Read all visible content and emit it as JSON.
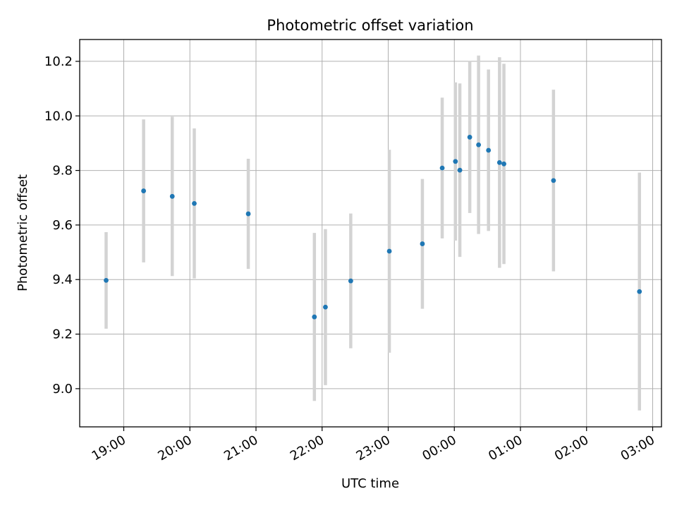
{
  "chart_data": {
    "type": "scatter",
    "title": "Photometric offset variation",
    "xlabel": "UTC time",
    "ylabel": "Photometric offset",
    "x_axis_kind": "time",
    "x_ticks": [
      "19:00",
      "20:00",
      "21:00",
      "22:00",
      "23:00",
      "00:00",
      "01:00",
      "02:00",
      "03:00"
    ],
    "y_ticks": [
      "9.0",
      "9.2",
      "9.4",
      "9.6",
      "9.8",
      "10.0",
      "10.2"
    ],
    "xlim": [
      "18:20",
      "03:08"
    ],
    "ylim": [
      8.86,
      10.28
    ],
    "grid": true,
    "point_color": "#1f77b4",
    "errorbar_color": "#d3d3d3",
    "points": [
      {
        "x": "18:44",
        "y": 9.397,
        "err": 0.177
      },
      {
        "x": "19:18",
        "y": 9.725,
        "err": 0.262
      },
      {
        "x": "19:44",
        "y": 9.705,
        "err": 0.292
      },
      {
        "x": "20:04",
        "y": 9.679,
        "err": 0.275
      },
      {
        "x": "20:53",
        "y": 9.641,
        "err": 0.202
      },
      {
        "x": "21:53",
        "y": 9.263,
        "err": 0.308
      },
      {
        "x": "22:03",
        "y": 9.299,
        "err": 0.286
      },
      {
        "x": "22:26",
        "y": 9.395,
        "err": 0.247
      },
      {
        "x": "23:01",
        "y": 9.504,
        "err": 0.372
      },
      {
        "x": "23:31",
        "y": 9.531,
        "err": 0.238
      },
      {
        "x": "23:49",
        "y": 9.809,
        "err": 0.258
      },
      {
        "x": "00:01",
        "y": 9.833,
        "err": 0.29
      },
      {
        "x": "00:05",
        "y": 9.801,
        "err": 0.318
      },
      {
        "x": "00:14",
        "y": 9.922,
        "err": 0.278
      },
      {
        "x": "00:22",
        "y": 9.894,
        "err": 0.327
      },
      {
        "x": "00:31",
        "y": 9.874,
        "err": 0.296
      },
      {
        "x": "00:41",
        "y": 9.829,
        "err": 0.386
      },
      {
        "x": "00:45",
        "y": 9.824,
        "err": 0.367
      },
      {
        "x": "01:30",
        "y": 9.763,
        "err": 0.333
      },
      {
        "x": "02:48",
        "y": 9.356,
        "err": 0.436
      }
    ]
  }
}
